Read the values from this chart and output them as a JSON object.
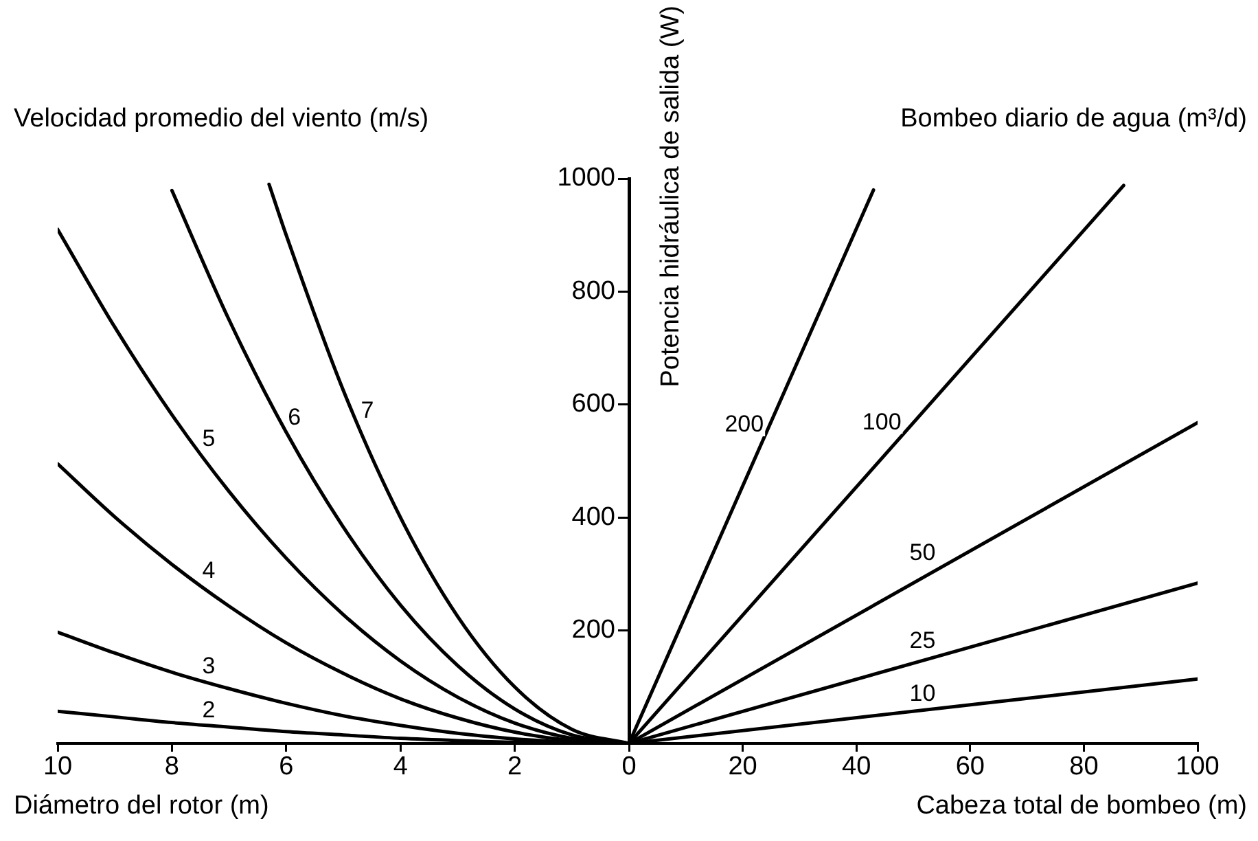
{
  "chart_data": [
    {
      "type": "line",
      "legend_title": "Velocidad promedio del viento (m/s)",
      "xlabel": "Diámetro del rotor (m)",
      "xlim": [
        10,
        0
      ],
      "xticks": [
        10,
        8,
        6,
        4,
        2,
        {
          "value": 0,
          "label": null
        }
      ],
      "ylim": [
        0,
        1000
      ],
      "tick_labels": "x",
      "marker": "none",
      "line_style": "solid",
      "series": [
        {
          "name": "2",
          "color": "#000000",
          "x": [
            0,
            1,
            2,
            3,
            4,
            5,
            6,
            7,
            8,
            9,
            10
          ],
          "values": [
            0,
            1,
            2,
            5,
            9,
            15,
            21,
            29,
            37,
            47,
            57
          ]
        },
        {
          "name": "3",
          "color": "#000000",
          "x": [
            0,
            1,
            2,
            3,
            4,
            5,
            6,
            7,
            8,
            9,
            10
          ],
          "values": [
            0,
            2,
            8,
            18,
            32,
            49,
            71,
            97,
            126,
            160,
            197
          ]
        },
        {
          "name": "4",
          "color": "#000000",
          "x": [
            0,
            1,
            2,
            3,
            4,
            5,
            6,
            7,
            8,
            9,
            10
          ],
          "values": [
            0,
            5,
            20,
            45,
            79,
            124,
            178,
            243,
            317,
            401,
            495
          ]
        },
        {
          "name": "5",
          "color": "#000000",
          "x": [
            0,
            1,
            2,
            3,
            4,
            5,
            6,
            7,
            8,
            9,
            10
          ],
          "values": [
            0,
            9,
            36,
            82,
            146,
            228,
            328,
            446,
            582,
            737,
            910
          ]
        },
        {
          "name": "6",
          "color": "#000000",
          "x": [
            0,
            1,
            2,
            3,
            4,
            5,
            6,
            7,
            8
          ],
          "values": [
            0,
            15,
            61,
            138,
            245,
            383,
            551,
            750,
            979
          ]
        },
        {
          "name": "7",
          "color": "#000000",
          "x": [
            0,
            1,
            2,
            3,
            4,
            5,
            6,
            6.3
          ],
          "values": [
            0,
            25,
            100,
            225,
            400,
            625,
            900,
            990
          ]
        }
      ]
    },
    {
      "type": "line",
      "legend_title": "Bombeo diario de agua (m³/d)",
      "xlabel": "Cabeza total de bombeo (m)",
      "ylabel": "Potencia hidráulica de salida (W)",
      "xlim": [
        0,
        100
      ],
      "xticks": [
        0,
        20,
        40,
        60,
        80,
        100
      ],
      "ylim": [
        0,
        1000
      ],
      "yticks": [
        200,
        400,
        600,
        800,
        1000
      ],
      "marker": "none",
      "line_style": "solid",
      "series": [
        {
          "name": "200",
          "color": "#000000",
          "x": [
            0,
            43
          ],
          "values": [
            0,
            980
          ]
        },
        {
          "name": "100",
          "color": "#000000",
          "x": [
            0,
            87
          ],
          "values": [
            0,
            988
          ]
        },
        {
          "name": "50",
          "color": "#000000",
          "x": [
            0,
            100
          ],
          "values": [
            0,
            568
          ]
        },
        {
          "name": "25",
          "color": "#000000",
          "x": [
            0,
            100
          ],
          "values": [
            0,
            284
          ]
        },
        {
          "name": "10",
          "color": "#000000",
          "x": [
            0,
            100
          ],
          "values": [
            0,
            114
          ]
        }
      ]
    }
  ]
}
